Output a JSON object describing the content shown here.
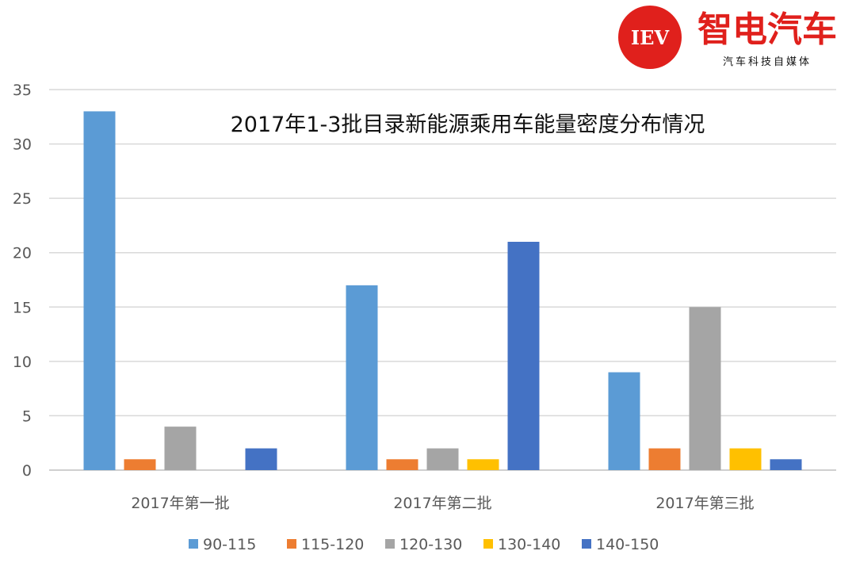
{
  "brand": {
    "logo_text": "IEV",
    "name": "智电汽车",
    "tagline": "汽车科技自媒体",
    "color": "#e0201c"
  },
  "chart_data": {
    "type": "bar",
    "title": "2017年1-3批目录新能源乘用车能量密度分布情况",
    "xlabel": "",
    "ylabel": "",
    "categories": [
      "2017年第一批",
      "2017年第二批",
      "2017年第三批"
    ],
    "series": [
      {
        "name": "90-115",
        "color": "#5b9bd5",
        "values": [
          33,
          17,
          9
        ]
      },
      {
        "name": "115-120",
        "color": "#ed7d31",
        "values": [
          1,
          1,
          2
        ]
      },
      {
        "name": "120-130",
        "color": "#a5a5a5",
        "values": [
          4,
          2,
          15
        ]
      },
      {
        "name": "130-140",
        "color": "#ffc000",
        "values": [
          0,
          1,
          2
        ]
      },
      {
        "name": "140-150",
        "color": "#4472c4",
        "values": [
          2,
          21,
          1
        ]
      }
    ],
    "ylim": [
      0,
      35
    ],
    "yticks": [
      0,
      5,
      10,
      15,
      20,
      25,
      30,
      35
    ],
    "grid": true,
    "legend_position": "bottom"
  }
}
